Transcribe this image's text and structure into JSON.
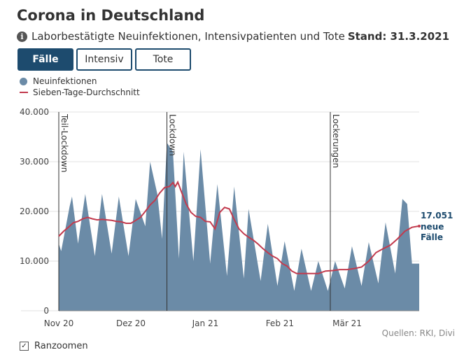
{
  "header": {
    "title": "Corona in Deutschland",
    "subtitle": "Laborbestätigte Neuinfektionen, Intensivpatienten und Tote",
    "stand": "Stand: 31.3.2021",
    "info_icon": "info-icon"
  },
  "tabs": [
    {
      "label": "Fälle",
      "active": true
    },
    {
      "label": "Intensiv",
      "active": false
    },
    {
      "label": "Tote",
      "active": false
    }
  ],
  "legend": {
    "bars_label": "Neuinfektionen",
    "line_label": "Sieben-Tage-Durchschnitt"
  },
  "footer": {
    "zoom_label": "Ranzoomen",
    "zoom_checked": true,
    "zoom_check_glyph": "✓",
    "source": "Quellen: RKI, Divi"
  },
  "chart_data": {
    "type": "area",
    "title": "Laborbestätigte Neuinfektionen",
    "xlabel": "",
    "ylabel": "",
    "ylim": [
      0,
      40000
    ],
    "y_ticks": [
      0,
      10000,
      20000,
      30000,
      40000
    ],
    "y_tick_labels": [
      "0",
      "10.000",
      "20.000",
      "30.000",
      "40.000"
    ],
    "x_range_days": [
      0,
      150
    ],
    "x_ticks": [
      {
        "day": 0,
        "label": "Nov 20"
      },
      {
        "day": 30,
        "label": "Dez 20"
      },
      {
        "day": 61,
        "label": "Jan 21"
      },
      {
        "day": 92,
        "label": "Feb 21"
      },
      {
        "day": 120,
        "label": "Mär 21"
      }
    ],
    "colors": {
      "bars": "#6b8ba7",
      "line": "#c23b4e",
      "annotation": "#1d4b6e",
      "grid": "#e2e2e2"
    },
    "series": [
      {
        "name": "Neuinfektionen",
        "kind": "daily-area",
        "peaks": [
          {
            "day": 4.5,
            "value": 21000
          },
          {
            "day": 5.5,
            "value": 23000
          },
          {
            "day": 11,
            "value": 23500
          },
          {
            "day": 18,
            "value": 23500
          },
          {
            "day": 25,
            "value": 23000
          },
          {
            "day": 32,
            "value": 22500
          },
          {
            "day": 38,
            "value": 30000
          },
          {
            "day": 41,
            "value": 23500
          },
          {
            "day": 45,
            "value": 33800
          },
          {
            "day": 47.5,
            "value": 32000
          },
          {
            "day": 52,
            "value": 32000
          },
          {
            "day": 59,
            "value": 32500
          },
          {
            "day": 66,
            "value": 25500
          },
          {
            "day": 73,
            "value": 25000
          },
          {
            "day": 79,
            "value": 20500
          },
          {
            "day": 87,
            "value": 17500
          },
          {
            "day": 94,
            "value": 14000
          },
          {
            "day": 101,
            "value": 12500
          },
          {
            "day": 108,
            "value": 10000
          },
          {
            "day": 115,
            "value": 10000
          },
          {
            "day": 122,
            "value": 13000
          },
          {
            "day": 129,
            "value": 13800
          },
          {
            "day": 136,
            "value": 17800
          },
          {
            "day": 143,
            "value": 22500
          },
          {
            "day": 145,
            "value": 21500
          }
        ],
        "troughs": [
          {
            "day": 0,
            "value": 13500
          },
          {
            "day": 1,
            "value": 12000
          },
          {
            "day": 8,
            "value": 13500
          },
          {
            "day": 15,
            "value": 11000
          },
          {
            "day": 22,
            "value": 11500
          },
          {
            "day": 29,
            "value": 11000
          },
          {
            "day": 36,
            "value": 17000
          },
          {
            "day": 43,
            "value": 14500
          },
          {
            "day": 50,
            "value": 10500
          },
          {
            "day": 56,
            "value": 10000
          },
          {
            "day": 63,
            "value": 9500
          },
          {
            "day": 70,
            "value": 7000
          },
          {
            "day": 77,
            "value": 6500
          },
          {
            "day": 84,
            "value": 6000
          },
          {
            "day": 91,
            "value": 5000
          },
          {
            "day": 98,
            "value": 4000
          },
          {
            "day": 105,
            "value": 4000
          },
          {
            "day": 112,
            "value": 4000
          },
          {
            "day": 119,
            "value": 4500
          },
          {
            "day": 126,
            "value": 5000
          },
          {
            "day": 133,
            "value": 5500
          },
          {
            "day": 140,
            "value": 7500
          },
          {
            "day": 147,
            "value": 9500
          },
          {
            "day": 150,
            "value": 9500
          }
        ]
      },
      {
        "name": "Sieben-Tage-Durchschnitt",
        "kind": "line",
        "points": [
          {
            "day": 0,
            "value": 15000
          },
          {
            "day": 2,
            "value": 16000
          },
          {
            "day": 4,
            "value": 16800
          },
          {
            "day": 6,
            "value": 17700
          },
          {
            "day": 8,
            "value": 18000
          },
          {
            "day": 10,
            "value": 18500
          },
          {
            "day": 12,
            "value": 18800
          },
          {
            "day": 14,
            "value": 18500
          },
          {
            "day": 16,
            "value": 18300
          },
          {
            "day": 18,
            "value": 18400
          },
          {
            "day": 20,
            "value": 18300
          },
          {
            "day": 22,
            "value": 18200
          },
          {
            "day": 24,
            "value": 18000
          },
          {
            "day": 26,
            "value": 17900
          },
          {
            "day": 28,
            "value": 17600
          },
          {
            "day": 30,
            "value": 17600
          },
          {
            "day": 32,
            "value": 18200
          },
          {
            "day": 34,
            "value": 18800
          },
          {
            "day": 36,
            "value": 20000
          },
          {
            "day": 38,
            "value": 21300
          },
          {
            "day": 40,
            "value": 22200
          },
          {
            "day": 42,
            "value": 23700
          },
          {
            "day": 44,
            "value": 24800
          },
          {
            "day": 46,
            "value": 25000
          },
          {
            "day": 47.5,
            "value": 25800
          },
          {
            "day": 48.5,
            "value": 25000
          },
          {
            "day": 49.5,
            "value": 25900
          },
          {
            "day": 51,
            "value": 24000
          },
          {
            "day": 53,
            "value": 21500
          },
          {
            "day": 55,
            "value": 19800
          },
          {
            "day": 57,
            "value": 19000
          },
          {
            "day": 59,
            "value": 18800
          },
          {
            "day": 61,
            "value": 18000
          },
          {
            "day": 63,
            "value": 17900
          },
          {
            "day": 65,
            "value": 16500
          },
          {
            "day": 67,
            "value": 19800
          },
          {
            "day": 69,
            "value": 20800
          },
          {
            "day": 71,
            "value": 20500
          },
          {
            "day": 73,
            "value": 18400
          },
          {
            "day": 75,
            "value": 16500
          },
          {
            "day": 77,
            "value": 15500
          },
          {
            "day": 79,
            "value": 14800
          },
          {
            "day": 81,
            "value": 14200
          },
          {
            "day": 83,
            "value": 13400
          },
          {
            "day": 85,
            "value": 12500
          },
          {
            "day": 87,
            "value": 11700
          },
          {
            "day": 89,
            "value": 11000
          },
          {
            "day": 91,
            "value": 10500
          },
          {
            "day": 93,
            "value": 9500
          },
          {
            "day": 95,
            "value": 9000
          },
          {
            "day": 97,
            "value": 8000
          },
          {
            "day": 99,
            "value": 7500
          },
          {
            "day": 101,
            "value": 7500
          },
          {
            "day": 103,
            "value": 7500
          },
          {
            "day": 105,
            "value": 7500
          },
          {
            "day": 108,
            "value": 7500
          },
          {
            "day": 111,
            "value": 8000
          },
          {
            "day": 114,
            "value": 8100
          },
          {
            "day": 117,
            "value": 8300
          },
          {
            "day": 120,
            "value": 8300
          },
          {
            "day": 123,
            "value": 8500
          },
          {
            "day": 126,
            "value": 8800
          },
          {
            "day": 129,
            "value": 10000
          },
          {
            "day": 132,
            "value": 11700
          },
          {
            "day": 135,
            "value": 12500
          },
          {
            "day": 138,
            "value": 13200
          },
          {
            "day": 141,
            "value": 14500
          },
          {
            "day": 144,
            "value": 16000
          },
          {
            "day": 147,
            "value": 16800
          },
          {
            "day": 150,
            "value": 17051
          }
        ]
      }
    ],
    "annotations": [
      {
        "day": 0,
        "label": "Teil-Lockdown"
      },
      {
        "day": 45,
        "label": "Lockdown"
      },
      {
        "day": 113,
        "label": "Lockerungen"
      }
    ],
    "end_label": {
      "value": "17.051",
      "line2": "neue",
      "line3": "Fälle"
    }
  }
}
